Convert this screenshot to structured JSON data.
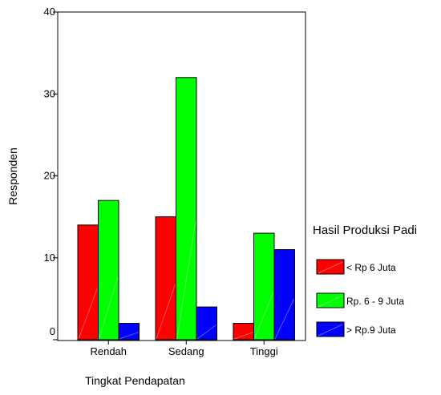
{
  "chart_data": {
    "type": "bar",
    "title": "",
    "xlabel": "Tingkat Pendapatan",
    "ylabel": "Responden",
    "categories": [
      "Rendah",
      "Sedang",
      "Tinggi"
    ],
    "ylim": [
      0,
      40
    ],
    "yticks": [
      0,
      10,
      20,
      30,
      40
    ],
    "grid": false,
    "legend": {
      "title": "Hasil Produksi Padi",
      "placement": "right"
    },
    "series": [
      {
        "name": "< Rp 6 Juta",
        "color": "#ff0000",
        "values": [
          14,
          15,
          2
        ]
      },
      {
        "name": "Rp. 6 - 9 Juta",
        "color": "#00ff00",
        "values": [
          17,
          32,
          13
        ]
      },
      {
        "name": "> Rp.9 Juta",
        "color": "#0000ff",
        "values": [
          2,
          4,
          11
        ]
      }
    ]
  }
}
